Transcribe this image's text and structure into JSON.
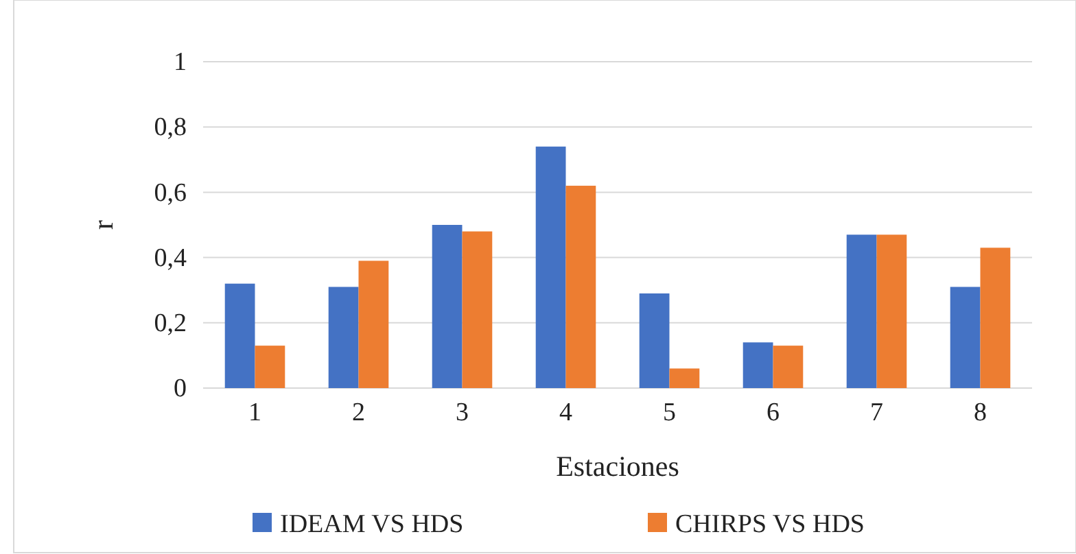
{
  "chart_data": {
    "type": "bar",
    "xlabel": "Estaciones",
    "ylabel": "r",
    "categories": [
      "1",
      "2",
      "3",
      "4",
      "5",
      "6",
      "7",
      "8"
    ],
    "series": [
      {
        "name": "IDEAM VS HDS",
        "color": "#4472c4",
        "values": [
          0.32,
          0.31,
          0.5,
          0.74,
          0.29,
          0.14,
          0.47,
          0.31
        ]
      },
      {
        "name": "CHIRPS VS HDS",
        "color": "#ed7d31",
        "values": [
          0.13,
          0.39,
          0.48,
          0.62,
          0.06,
          0.13,
          0.47,
          0.43
        ]
      }
    ],
    "ylim": [
      0,
      1
    ],
    "yticks": [
      0,
      {
        "value": 0.2,
        "label": "0,2"
      },
      {
        "value": 0.4,
        "label": "0,4"
      },
      {
        "value": 0.6,
        "label": "0,6"
      },
      {
        "value": 0.8,
        "label": "0,8"
      },
      1
    ],
    "grid": "y",
    "legend": "bottom"
  }
}
